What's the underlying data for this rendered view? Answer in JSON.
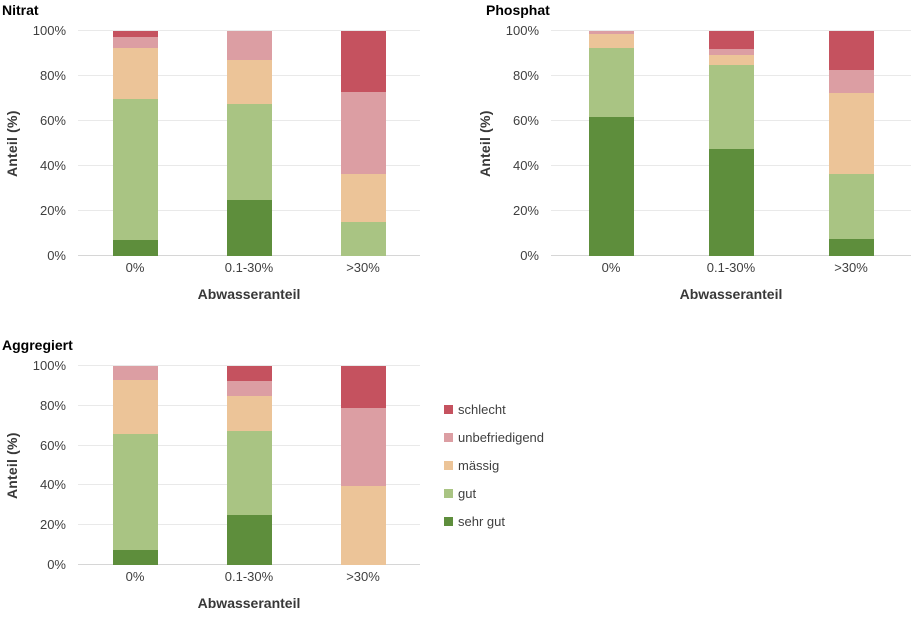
{
  "legend": {
    "position": "right-of-aggregiert-chart",
    "items": [
      {
        "label": "schlecht",
        "color": "#c5525f"
      },
      {
        "label": "unbefriedigend",
        "color": "#dc9ea3"
      },
      {
        "label": "mässig",
        "color": "#ecc498"
      },
      {
        "label": "gut",
        "color": "#a9c483"
      },
      {
        "label": "sehr gut",
        "color": "#5e8e3c"
      }
    ]
  },
  "chart_data": [
    {
      "type": "bar",
      "stacked": true,
      "title": "Nitrat",
      "xlabel": "Abwasseranteil",
      "ylabel": "Anteil (%)",
      "categories": [
        "0%",
        "0.1-30%",
        ">30%"
      ],
      "ytick_labels": [
        "0%",
        "20%",
        "40%",
        "60%",
        "80%",
        "100%"
      ],
      "ylim": [
        0,
        100
      ],
      "grid": true,
      "series": [
        {
          "name": "sehr gut",
          "values": [
            7,
            25,
            0
          ]
        },
        {
          "name": "gut",
          "values": [
            63,
            42.5,
            15
          ]
        },
        {
          "name": "mässig",
          "values": [
            22.5,
            19.5,
            21.5
          ]
        },
        {
          "name": "unbefriedigend",
          "values": [
            5,
            13,
            36.5
          ]
        },
        {
          "name": "schlecht",
          "values": [
            2.5,
            0,
            27
          ]
        }
      ]
    },
    {
      "type": "bar",
      "stacked": true,
      "title": "Phosphat",
      "xlabel": "Abwasseranteil",
      "ylabel": "Anteil (%)",
      "categories": [
        "0%",
        "0.1-30%",
        ">30%"
      ],
      "ytick_labels": [
        "0%",
        "20%",
        "40%",
        "60%",
        "80%",
        "100%"
      ],
      "ylim": [
        0,
        100
      ],
      "grid": true,
      "series": [
        {
          "name": "sehr gut",
          "values": [
            62,
            47.5,
            7.5
          ]
        },
        {
          "name": "gut",
          "values": [
            30.5,
            37.5,
            29
          ]
        },
        {
          "name": "mässig",
          "values": [
            6,
            4.5,
            36
          ]
        },
        {
          "name": "unbefriedigend",
          "values": [
            1.5,
            2.5,
            10
          ]
        },
        {
          "name": "schlecht",
          "values": [
            0,
            8,
            17.5
          ]
        }
      ]
    },
    {
      "type": "bar",
      "stacked": true,
      "title": "Aggregiert",
      "xlabel": "Abwasseranteil",
      "ylabel": "Anteil (%)",
      "categories": [
        "0%",
        "0.1-30%",
        ">30%"
      ],
      "ytick_labels": [
        "0%",
        "20%",
        "40%",
        "60%",
        "80%",
        "100%"
      ],
      "ylim": [
        0,
        100
      ],
      "grid": true,
      "series": [
        {
          "name": "sehr gut",
          "values": [
            7.5,
            25,
            0
          ]
        },
        {
          "name": "gut",
          "values": [
            58.5,
            42.5,
            0
          ]
        },
        {
          "name": "mässig",
          "values": [
            27,
            17.5,
            39.5
          ]
        },
        {
          "name": "unbefriedigend",
          "values": [
            7,
            7.5,
            39.5
          ]
        },
        {
          "name": "schlecht",
          "values": [
            0,
            7.5,
            21
          ]
        }
      ]
    }
  ]
}
